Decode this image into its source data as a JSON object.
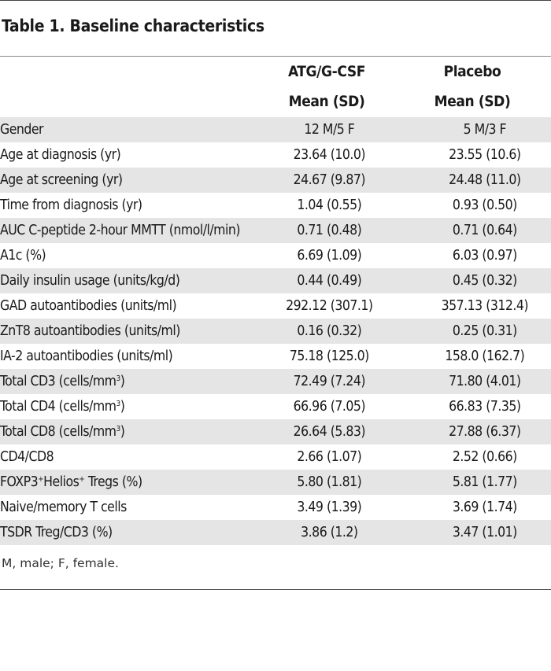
{
  "title": "Table 1. Baseline characteristics",
  "columns": [
    {
      "group": "ATG/G-CSF",
      "stat": "Mean (SD)"
    },
    {
      "group": "Placebo",
      "stat": "Mean (SD)"
    }
  ],
  "rows": [
    {
      "label": "Gender",
      "sup": "",
      "suffix": "",
      "atg": "12 M/5 F",
      "placebo": "5 M/3 F"
    },
    {
      "label": "Age at diagnosis (yr)",
      "sup": "",
      "suffix": "",
      "atg": "23.64 (10.0)",
      "placebo": "23.55 (10.6)"
    },
    {
      "label": "Age at screening (yr)",
      "sup": "",
      "suffix": "",
      "atg": "24.67 (9.87)",
      "placebo": "24.48 (11.0)"
    },
    {
      "label": "Time from diagnosis (yr)",
      "sup": "",
      "suffix": "",
      "atg": "1.04 (0.55)",
      "placebo": "0.93 (0.50)"
    },
    {
      "label": "AUC C-peptide 2-hour MMTT (nmol/l/min)",
      "sup": "",
      "suffix": "",
      "atg": "0.71 (0.48)",
      "placebo": "0.71 (0.64)"
    },
    {
      "label": "A1c (%)",
      "sup": "",
      "suffix": "",
      "atg": "6.69 (1.09)",
      "placebo": "6.03 (0.97)"
    },
    {
      "label": "Daily insulin usage (units/kg/d)",
      "sup": "",
      "suffix": "",
      "atg": "0.44 (0.49)",
      "placebo": "0.45 (0.32)"
    },
    {
      "label": "GAD autoantibodies (units/ml)",
      "sup": "",
      "suffix": "",
      "atg": "292.12 (307.1)",
      "placebo": "357.13 (312.4)"
    },
    {
      "label": "ZnT8 autoantibodies (units/ml)",
      "sup": "",
      "suffix": "",
      "atg": "0.16 (0.32)",
      "placebo": "0.25 (0.31)"
    },
    {
      "label": "IA-2 autoantibodies (units/ml)",
      "sup": "",
      "suffix": "",
      "atg": "75.18 (125.0)",
      "placebo": "158.0 (162.7)"
    },
    {
      "label": "Total CD3 (cells/mm",
      "sup": "3",
      "suffix": ")",
      "atg": "72.49 (7.24)",
      "placebo": "71.80 (4.01)"
    },
    {
      "label": "Total CD4 (cells/mm",
      "sup": "3",
      "suffix": ")",
      "atg": "66.96 (7.05)",
      "placebo": "66.83 (7.35)"
    },
    {
      "label": "Total CD8 (cells/mm",
      "sup": "3",
      "suffix": ")",
      "atg": "26.64 (5.83)",
      "placebo": "27.88 (6.37)"
    },
    {
      "label": "CD4/CD8",
      "sup": "",
      "suffix": "",
      "atg": "2.66 (1.07)",
      "placebo": "2.52 (0.66)"
    },
    {
      "label": "FOXP3",
      "sup": "+",
      "suffix": "Helios",
      "sup2": "+",
      "suffix2": " Tregs (%)",
      "atg": "5.80 (1.81)",
      "placebo": "5.81 (1.77)"
    },
    {
      "label": "Naive/memory T cells",
      "sup": "",
      "suffix": "",
      "atg": "3.49 (1.39)",
      "placebo": "3.69 (1.74)"
    },
    {
      "label": "TSDR Treg/CD3 (%)",
      "sup": "",
      "suffix": "",
      "atg": "3.86 (1.2)",
      "placebo": "3.47 (1.01)"
    }
  ],
  "footnote": "M, male; F, female."
}
